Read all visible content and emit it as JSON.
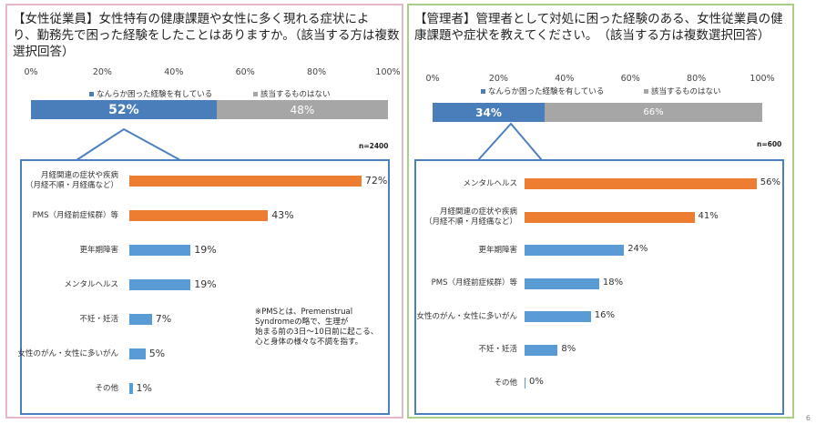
{
  "chart_data": [
    {
      "id": "left",
      "type": "bar",
      "title": "【女性従業員】女性特有の健康課題や女性に多く現れる症状により、勤務先で困った経験をしたことはありますか。（該当する方は複数選択回答）",
      "title_lines": [
        "【女性従業員】女性特有の健康課題や女性に多く現れる症状によ",
        "り、勤務先で困った経験をしたことはありますか。（該当する方は複数",
        "選択回答）"
      ],
      "axis_ticks": [
        "0%",
        "20%",
        "40%",
        "60%",
        "80%",
        "100%"
      ],
      "legend": [
        "なんらか困った経験を有している",
        "該当するものはない"
      ],
      "summary": {
        "values": [
          52,
          48
        ],
        "labels": [
          "52%",
          "48%"
        ]
      },
      "sample": "n=2400",
      "categories": [
        [
          "月経関連の症状や疾病",
          "（月経不順・月経痛など）"
        ],
        [
          "PMS（月経前症候群）等"
        ],
        [
          "更年期障害"
        ],
        [
          "メンタルヘルス"
        ],
        [
          "不妊・妊活"
        ],
        [
          "女性のがん・女性に多いがん"
        ],
        [
          "その他"
        ]
      ],
      "values": [
        72,
        43,
        19,
        19,
        7,
        5,
        1
      ],
      "value_labels": [
        "72%",
        "43%",
        "19%",
        "19%",
        "7%",
        "5%",
        "1%"
      ],
      "note": [
        "※PMSとは、Premenstrual",
        "Syndromeの略で、生理が",
        "始まる前の3日～10日前に起こる、",
        "心と身体の様々な不調を指す。"
      ]
    },
    {
      "id": "right",
      "type": "bar",
      "title": "【管理者】管理者として対処に困った経験のある、女性従業員の健康課題や症状を教えてください。（該当する方は複数選択回答）",
      "title_lines": [
        "【管理者】管理者として対処に困った経験のある、女性従業員の健",
        "康課題や症状を教えてください。　（該当する方は複数選択回答）"
      ],
      "axis_ticks": [
        "0%",
        "20%",
        "40%",
        "60%",
        "80%",
        "100%"
      ],
      "legend": [
        "なんらか困った経験を有している",
        "該当するものはない"
      ],
      "summary": {
        "values": [
          34,
          66
        ],
        "labels": [
          "34%",
          "66%"
        ]
      },
      "sample": "n=600",
      "categories": [
        [
          "メンタルヘルス"
        ],
        [
          "月経関連の症状や疾病",
          "（月経不順・月経痛など）"
        ],
        [
          "更年期障害"
        ],
        [
          "PMS（月経前症候群）等"
        ],
        [
          "女性のがん・女性に多いがん"
        ],
        [
          "不妊・妊活"
        ],
        [
          "その他"
        ]
      ],
      "values": [
        56,
        41,
        24,
        18,
        16,
        8,
        0
      ],
      "value_labels": [
        "56%",
        "41%",
        "24%",
        "18%",
        "16%",
        "8%",
        "0%"
      ]
    }
  ],
  "colors": {
    "blue": "#4f81bd",
    "gray": "#a6a6a6",
    "orange": "#ed7d31",
    "light_blue": "#5b9bd5",
    "summary_blue": "#4a7ebb"
  },
  "page_number": "6"
}
